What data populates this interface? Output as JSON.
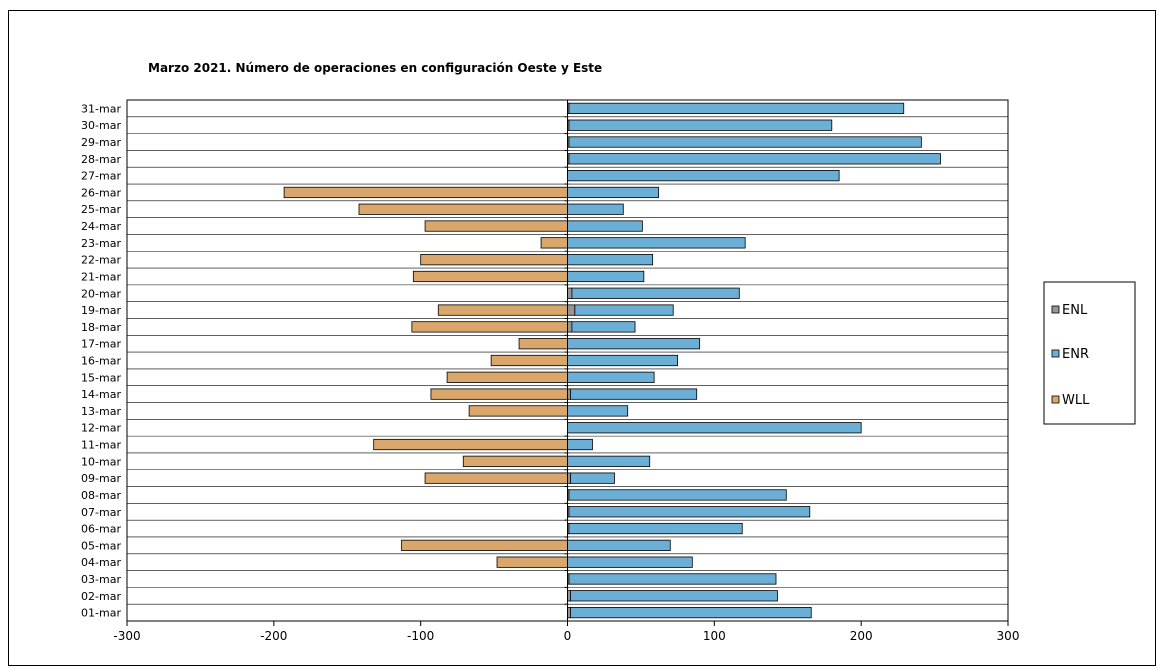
{
  "chart_data": {
    "type": "bar",
    "orientation": "horizontal",
    "stacked": true,
    "title": "Marzo 2021. Número de operaciones en configuración Oeste y Este",
    "xlim": [
      -300,
      300
    ],
    "xticks": [
      "-300",
      "-200",
      "-100",
      "0",
      "100",
      "200",
      "300"
    ],
    "grid": "horizontal",
    "legend_position": "right",
    "categories": [
      "01-mar",
      "02-mar",
      "03-mar",
      "04-mar",
      "05-mar",
      "06-mar",
      "07-mar",
      "08-mar",
      "09-mar",
      "10-mar",
      "11-mar",
      "12-mar",
      "13-mar",
      "14-mar",
      "15-mar",
      "16-mar",
      "17-mar",
      "18-mar",
      "19-mar",
      "20-mar",
      "21-mar",
      "22-mar",
      "23-mar",
      "24-mar",
      "25-mar",
      "26-mar",
      "27-mar",
      "28-mar",
      "29-mar",
      "30-mar",
      "31-mar"
    ],
    "series": [
      {
        "name": "ENL",
        "color": "#969696",
        "values": [
          2,
          2,
          1,
          0,
          0,
          1,
          1,
          1,
          2,
          0,
          0,
          0,
          0,
          2,
          0,
          0,
          0,
          3,
          5,
          3,
          0,
          0,
          0,
          0,
          0,
          0,
          0,
          1,
          1,
          1,
          1
        ]
      },
      {
        "name": "ENR",
        "color": "#6baed6",
        "values": [
          164,
          141,
          141,
          85,
          70,
          118,
          164,
          148,
          30,
          56,
          17,
          200,
          41,
          86,
          59,
          75,
          90,
          43,
          67,
          114,
          52,
          58,
          121,
          51,
          38,
          62,
          185,
          253,
          240,
          179,
          228
        ]
      },
      {
        "name": "WLL",
        "color": "#d9a66b",
        "values": [
          0,
          0,
          0,
          -48,
          -113,
          0,
          0,
          0,
          -97,
          -71,
          -132,
          0,
          -67,
          -93,
          -82,
          -52,
          -33,
          -106,
          -88,
          0,
          -105,
          -100,
          -18,
          -97,
          -142,
          -193,
          0,
          0,
          0,
          0,
          0
        ]
      }
    ]
  }
}
